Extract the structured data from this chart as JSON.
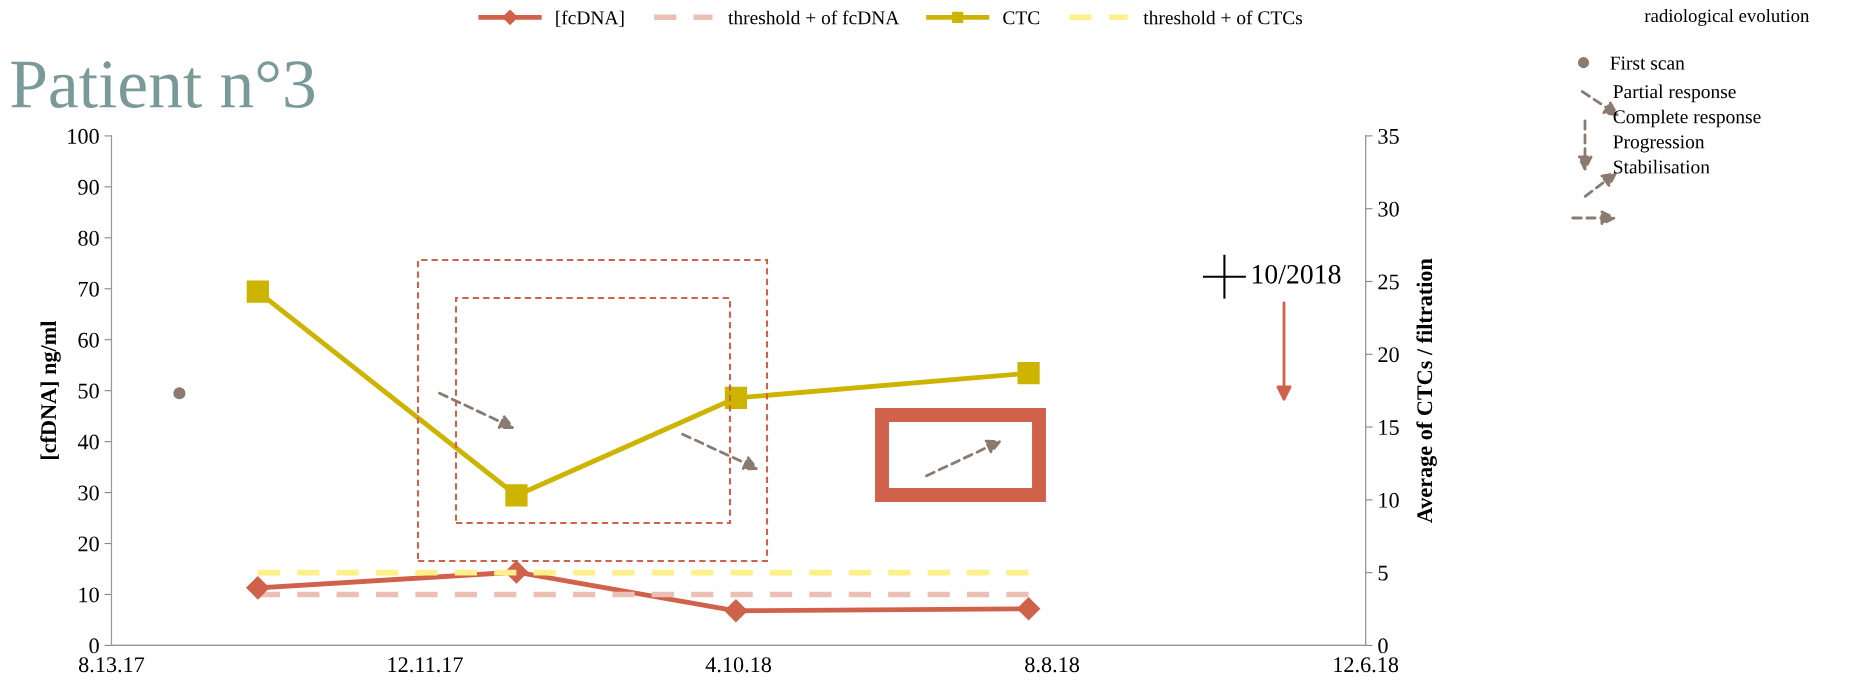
{
  "chart_data": {
    "type": "line",
    "title": "Patient n°3",
    "ylabel": "[cfDNA] ng/ml",
    "y2label": "Average of CTCs / filtration",
    "xlim": [
      "2017-08-13",
      "2018-12-06"
    ],
    "xticks": [
      {
        "value": "2017-08-13",
        "label": "8.13.17"
      },
      {
        "value": "2017-12-11",
        "label": "12.11.17"
      },
      {
        "value": "2018-04-10",
        "label": "4.10.18"
      },
      {
        "value": "2018-08-08",
        "label": "8.8.18"
      },
      {
        "value": "2018-12-06",
        "label": "12.6.18"
      }
    ],
    "ylim": [
      0,
      100
    ],
    "yticks": [
      0,
      10,
      20,
      30,
      40,
      50,
      60,
      70,
      80,
      90,
      100
    ],
    "y2lim": [
      0,
      35
    ],
    "y2ticks": [
      0,
      5,
      10,
      15,
      20,
      25,
      30,
      35
    ],
    "series": [
      {
        "name": "[fcDNA]",
        "color": "#d0614a",
        "marker": "diamond",
        "x": [
          "2017-10-08",
          "2018-01-15",
          "2018-04-09",
          "2018-07-30"
        ],
        "values": [
          11.3,
          14.4,
          6.8,
          7.2
        ]
      },
      {
        "name": "threshold + of fcDNA",
        "color": "#ecbfb5",
        "line_style": "dashed",
        "x": [
          "2017-10-08",
          "2018-07-30"
        ],
        "values": [
          10,
          10
        ]
      },
      {
        "name": "CTC",
        "color": "#ccb400",
        "marker": "square",
        "axis": "y2",
        "x": [
          "2017-10-08",
          "2018-01-15",
          "2018-04-09",
          "2018-07-30"
        ],
        "values": [
          24.3,
          10.3,
          17.0,
          18.7
        ]
      },
      {
        "name": "threshold + of CTCs",
        "color": "#fff08a",
        "line_style": "dashed",
        "axis": "y2",
        "x": [
          "2017-10-08",
          "2018-07-30"
        ],
        "values": [
          5,
          5
        ]
      },
      {
        "name": "First scan",
        "type": "scatter",
        "color": "#8b7a70",
        "marker": "circle",
        "x": [
          "2017-09-08"
        ],
        "values": [
          49.5
        ]
      }
    ],
    "annotations": [
      "radiological evolution",
      "Partial response",
      "Complete response",
      "Progression",
      "Stabilisation",
      "10/2018"
    ],
    "legend": "top",
    "grid": false
  }
}
